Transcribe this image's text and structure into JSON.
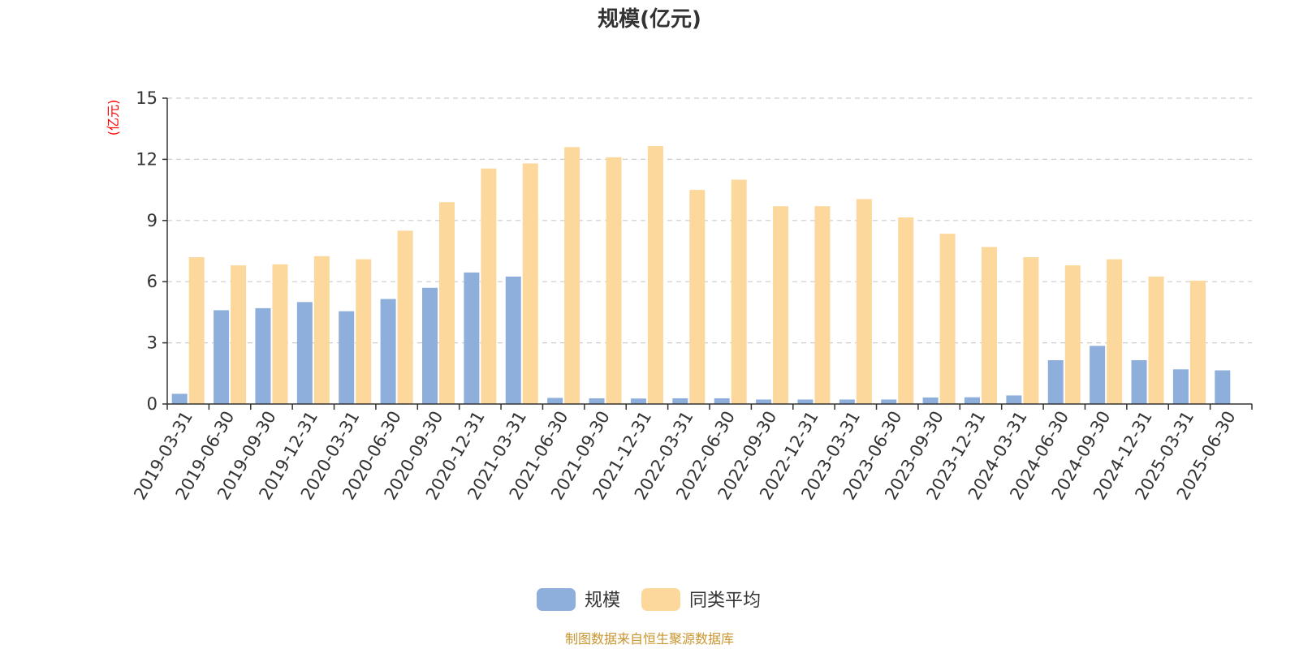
{
  "colors": {
    "series_a": "#8eaedc",
    "series_b": "#fdd89c",
    "unit": "#ff0000",
    "source": "#c8952e",
    "grid": "#cccccc",
    "axis": "#333333"
  },
  "chart_data": {
    "type": "bar",
    "title": "规模(亿元)",
    "unit_label": "(亿元)",
    "ylim": [
      0,
      15
    ],
    "yticks": [
      0,
      3,
      6,
      9,
      12,
      15
    ],
    "grid": true,
    "legend_position": "bottom-center",
    "categories": [
      "2019-03-31",
      "2019-06-30",
      "2019-09-30",
      "2019-12-31",
      "2020-03-31",
      "2020-06-30",
      "2020-09-30",
      "2020-12-31",
      "2021-03-31",
      "2021-06-30",
      "2021-09-30",
      "2021-12-31",
      "2022-03-31",
      "2022-06-30",
      "2022-09-30",
      "2022-12-31",
      "2023-03-31",
      "2023-06-30",
      "2023-09-30",
      "2023-12-31",
      "2024-03-31",
      "2024-06-30",
      "2024-09-30",
      "2024-12-31",
      "2025-03-31",
      "2025-06-30"
    ],
    "series": [
      {
        "name": "规模",
        "values": [
          0.5,
          4.6,
          4.7,
          5.0,
          4.55,
          5.15,
          5.7,
          6.45,
          6.25,
          0.3,
          0.28,
          0.27,
          0.28,
          0.28,
          0.22,
          0.22,
          0.22,
          0.22,
          0.32,
          0.33,
          0.42,
          2.15,
          2.85,
          2.15,
          1.7,
          1.65
        ]
      },
      {
        "name": "同类平均",
        "values": [
          7.2,
          6.8,
          6.85,
          7.25,
          7.1,
          8.5,
          9.9,
          11.55,
          11.8,
          12.6,
          12.1,
          12.65,
          10.5,
          11.0,
          9.7,
          9.7,
          10.05,
          9.15,
          8.35,
          7.7,
          7.2,
          6.8,
          7.1,
          6.25,
          6.05,
          null
        ]
      }
    ]
  },
  "source_text": "制图数据来自恒生聚源数据库"
}
